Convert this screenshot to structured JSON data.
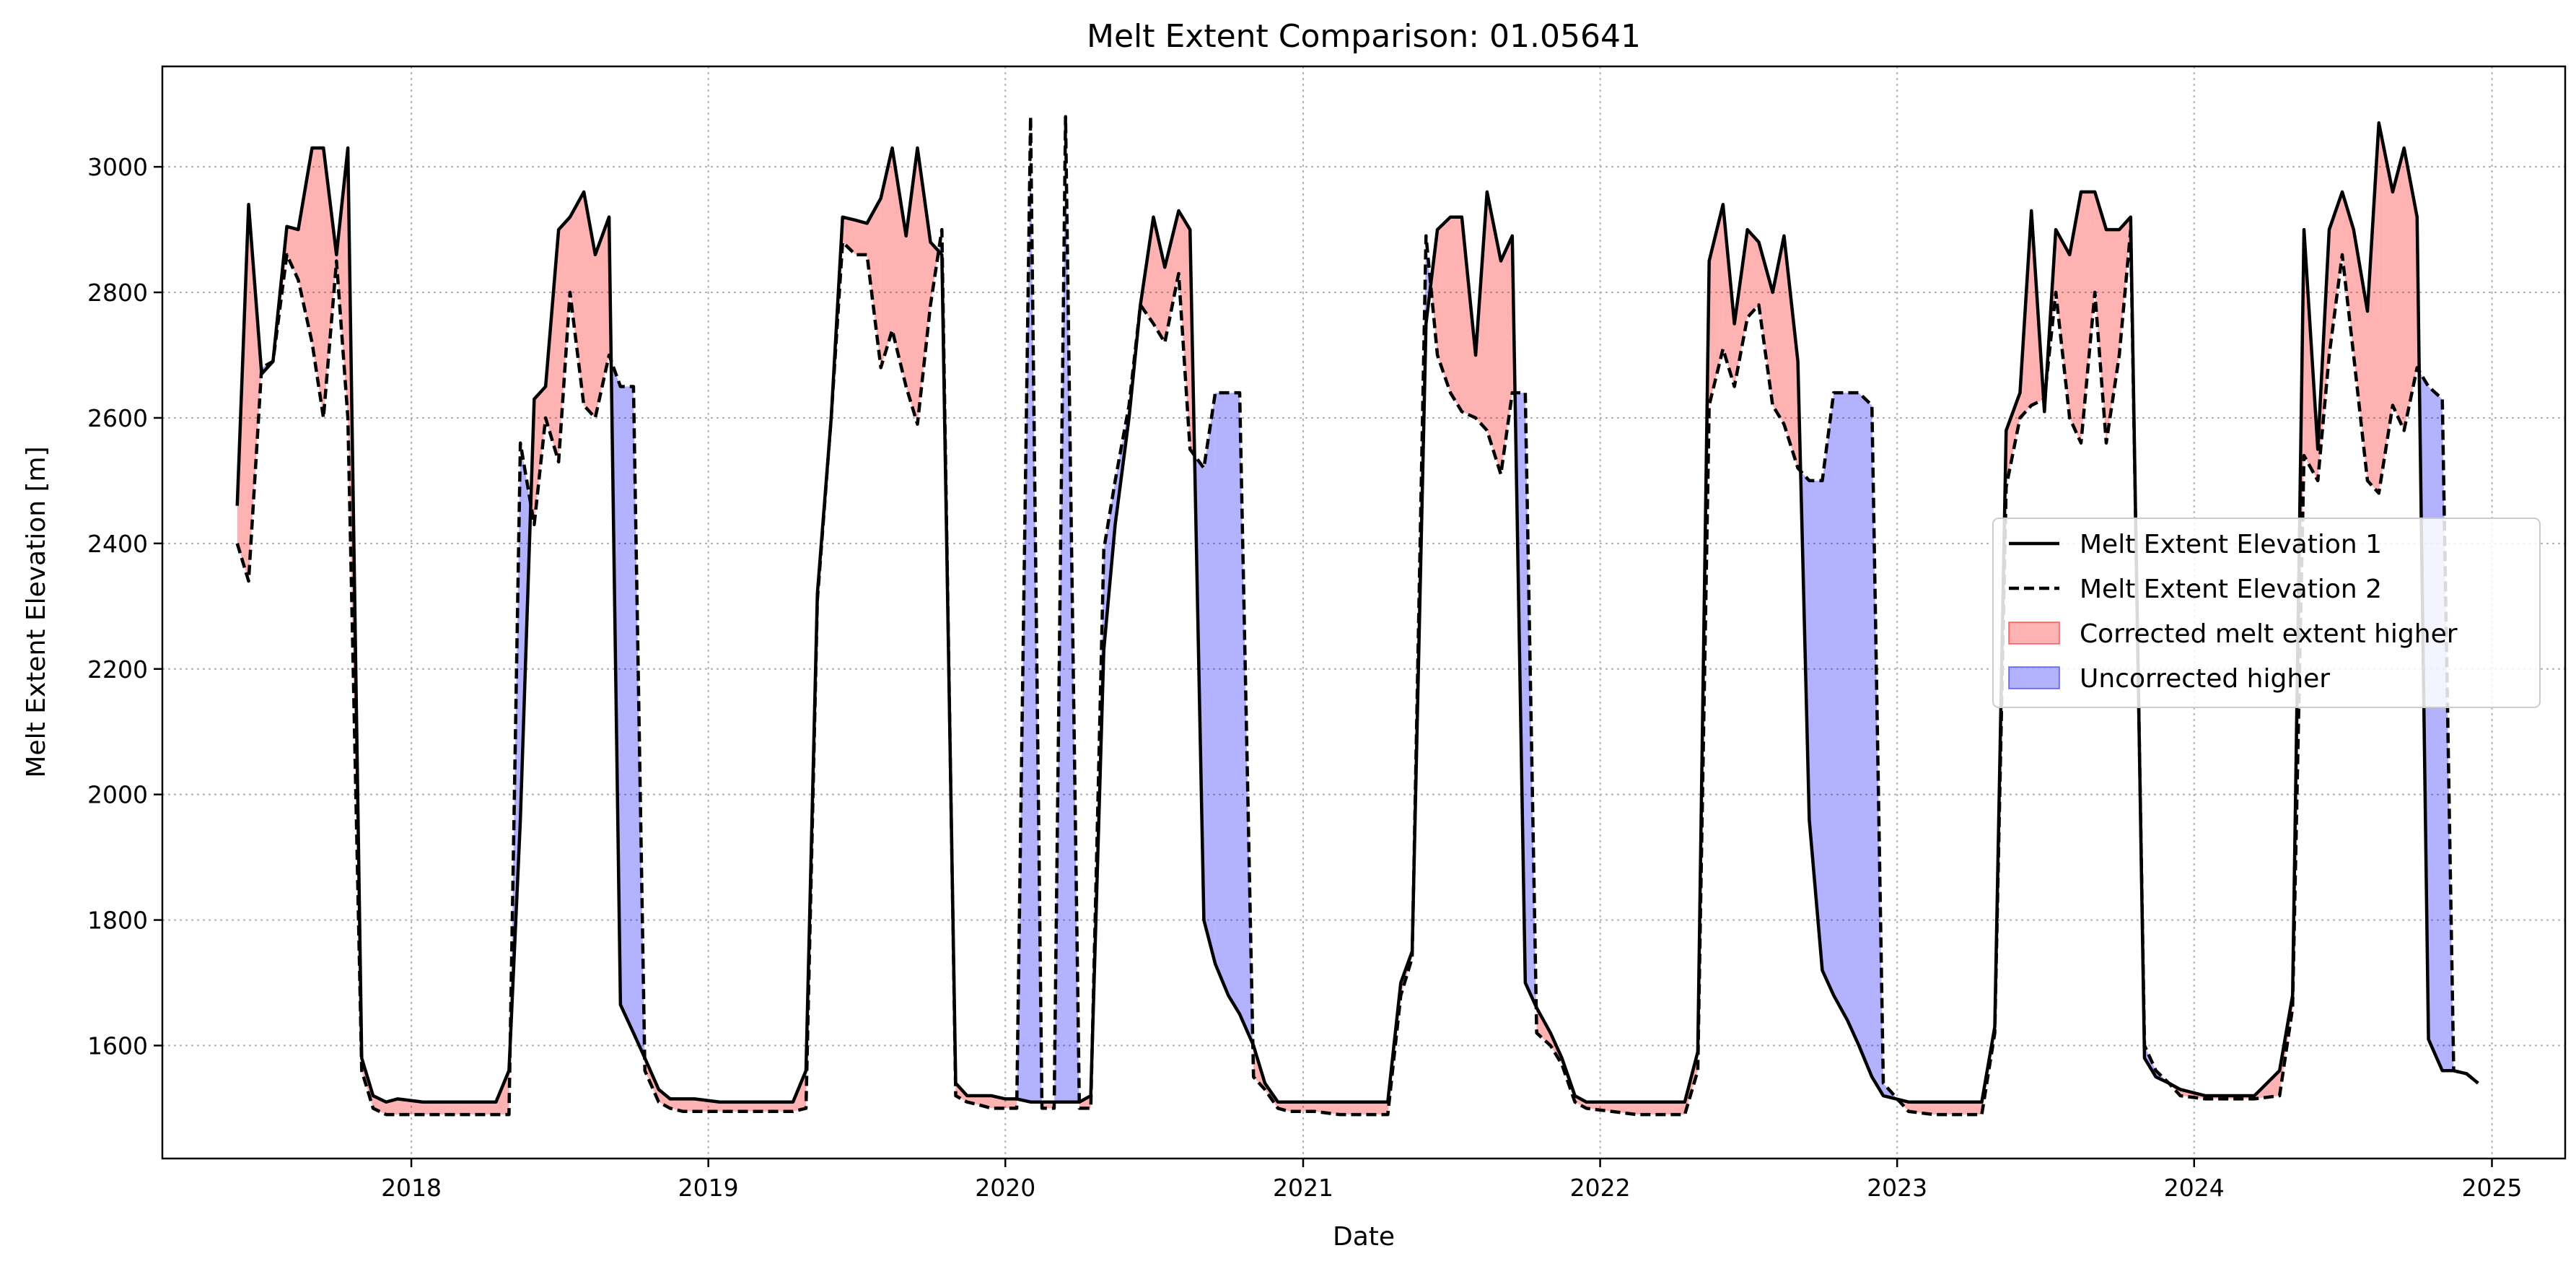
{
  "chart_data": {
    "type": "line",
    "title": "Melt Extent Comparison: 01.05641",
    "xlabel": "Date",
    "ylabel": "Melt Extent Elevation [m]",
    "xlim": [
      "2017-03-01",
      "2025-04-01"
    ],
    "ylim": [
      1420,
      3160
    ],
    "x_ticks": [
      "2018",
      "2019",
      "2020",
      "2021",
      "2022",
      "2023",
      "2024",
      "2025"
    ],
    "y_ticks": [
      1600,
      1800,
      2000,
      2200,
      2400,
      2600,
      2800,
      3000
    ],
    "grid": true,
    "legend_position": "center-right",
    "colors": {
      "line": "#000000",
      "higher_fill": "#ff0000",
      "lower_fill": "#0000ff",
      "fill_alpha": 0.3
    },
    "legend": [
      {
        "label": "Melt Extent Elevation 1",
        "kind": "solid"
      },
      {
        "label": "Melt Extent Elevation 2",
        "kind": "dashed"
      },
      {
        "label": "Corrected melt extent higher",
        "kind": "fill-red"
      },
      {
        "label": "Uncorrected higher",
        "kind": "fill-blue"
      }
    ],
    "dates": [
      "2017-06-01",
      "2017-06-15",
      "2017-07-01",
      "2017-07-15",
      "2017-08-01",
      "2017-08-15",
      "2017-09-01",
      "2017-09-15",
      "2017-10-01",
      "2017-10-15",
      "2017-11-01",
      "2017-11-15",
      "2017-12-01",
      "2017-12-15",
      "2018-01-15",
      "2018-02-15",
      "2018-03-15",
      "2018-04-15",
      "2018-05-01",
      "2018-05-15",
      "2018-06-01",
      "2018-06-15",
      "2018-07-01",
      "2018-07-15",
      "2018-08-01",
      "2018-08-15",
      "2018-09-01",
      "2018-09-15",
      "2018-10-01",
      "2018-10-15",
      "2018-11-01",
      "2018-11-15",
      "2018-12-01",
      "2018-12-15",
      "2019-01-15",
      "2019-02-15",
      "2019-03-15",
      "2019-04-15",
      "2019-05-01",
      "2019-05-15",
      "2019-06-01",
      "2019-06-15",
      "2019-07-01",
      "2019-07-15",
      "2019-08-01",
      "2019-08-15",
      "2019-09-01",
      "2019-09-15",
      "2019-10-01",
      "2019-10-15",
      "2019-11-01",
      "2019-11-15",
      "2019-12-01",
      "2019-12-15",
      "2020-01-01",
      "2020-01-15",
      "2020-02-01",
      "2020-02-15",
      "2020-03-01",
      "2020-03-15",
      "2020-04-01",
      "2020-04-15",
      "2020-05-01",
      "2020-05-15",
      "2020-06-01",
      "2020-06-15",
      "2020-07-01",
      "2020-07-15",
      "2020-08-01",
      "2020-08-15",
      "2020-09-01",
      "2020-09-15",
      "2020-10-01",
      "2020-10-15",
      "2020-11-01",
      "2020-11-15",
      "2020-12-01",
      "2020-12-15",
      "2021-01-15",
      "2021-02-15",
      "2021-03-15",
      "2021-04-15",
      "2021-05-01",
      "2021-05-15",
      "2021-06-01",
      "2021-06-15",
      "2021-07-01",
      "2021-07-15",
      "2021-08-01",
      "2021-08-15",
      "2021-09-01",
      "2021-09-15",
      "2021-10-01",
      "2021-10-15",
      "2021-11-01",
      "2021-11-15",
      "2021-12-01",
      "2021-12-15",
      "2022-01-15",
      "2022-02-15",
      "2022-03-15",
      "2022-04-15",
      "2022-05-01",
      "2022-05-15",
      "2022-06-01",
      "2022-06-15",
      "2022-07-01",
      "2022-07-15",
      "2022-08-01",
      "2022-08-15",
      "2022-09-01",
      "2022-09-15",
      "2022-10-01",
      "2022-10-15",
      "2022-11-01",
      "2022-11-15",
      "2022-12-01",
      "2022-12-15",
      "2023-01-15",
      "2023-02-15",
      "2023-03-15",
      "2023-04-15",
      "2023-05-01",
      "2023-05-15",
      "2023-06-01",
      "2023-06-15",
      "2023-07-01",
      "2023-07-15",
      "2023-08-01",
      "2023-08-15",
      "2023-09-01",
      "2023-09-15",
      "2023-10-01",
      "2023-10-15",
      "2023-11-01",
      "2023-11-15",
      "2023-12-01",
      "2023-12-15",
      "2024-01-15",
      "2024-02-15",
      "2024-03-15",
      "2024-04-15",
      "2024-05-01",
      "2024-05-15",
      "2024-06-01",
      "2024-06-15",
      "2024-07-01",
      "2024-07-15",
      "2024-08-01",
      "2024-08-15",
      "2024-09-01",
      "2024-09-15",
      "2024-10-01",
      "2024-10-15",
      "2024-11-01",
      "2024-11-15",
      "2024-12-01",
      "2024-12-15"
    ],
    "series": [
      {
        "name": "Melt Extent Elevation 1",
        "style": "solid",
        "values": [
          2460,
          2940,
          2670,
          2690,
          2905,
          2900,
          3030,
          3030,
          2860,
          3030,
          1580,
          1520,
          1510,
          1515,
          1510,
          1510,
          1510,
          1510,
          1560,
          1960,
          2630,
          2650,
          2900,
          2920,
          2960,
          2860,
          2920,
          1665,
          1620,
          1580,
          1530,
          1515,
          1515,
          1515,
          1510,
          1510,
          1510,
          1510,
          1560,
          2320,
          2600,
          2920,
          2915,
          2910,
          2950,
          3030,
          2890,
          3030,
          2880,
          2860,
          1540,
          1520,
          1520,
          1520,
          1515,
          1515,
          1510,
          1510,
          1510,
          1510,
          1510,
          1520,
          2230,
          2430,
          2600,
          2780,
          2920,
          2840,
          2930,
          2900,
          1800,
          1730,
          1680,
          1650,
          1600,
          1540,
          1510,
          1510,
          1510,
          1510,
          1510,
          1510,
          1700,
          1750,
          2750,
          2900,
          2920,
          2920,
          2700,
          2960,
          2850,
          2890,
          1700,
          1660,
          1620,
          1580,
          1520,
          1510,
          1510,
          1510,
          1510,
          1510,
          1590,
          2850,
          2940,
          2750,
          2900,
          2880,
          2800,
          2890,
          2690,
          1960,
          1720,
          1680,
          1640,
          1600,
          1550,
          1520,
          1510,
          1510,
          1510,
          1510,
          1630,
          2580,
          2640,
          2930,
          2610,
          2900,
          2860,
          2960,
          2960,
          2900,
          2900,
          2920,
          1580,
          1550,
          1540,
          1530,
          1520,
          1520,
          1520,
          1560,
          1680,
          2900,
          2550,
          2900,
          2960,
          2900,
          2770,
          3070,
          2960,
          3030,
          2920,
          1610,
          1560,
          1560,
          1555,
          1540
        ]
      },
      {
        "name": "Melt Extent Elevation 2",
        "style": "dashed",
        "values": [
          2400,
          2340,
          2680,
          2690,
          2860,
          2820,
          2720,
          2600,
          2850,
          2600,
          1560,
          1500,
          1490,
          1490,
          1490,
          1490,
          1490,
          1490,
          1490,
          2560,
          2430,
          2600,
          2530,
          2800,
          2620,
          2600,
          2700,
          2650,
          2650,
          1560,
          1510,
          1500,
          1495,
          1495,
          1495,
          1495,
          1495,
          1495,
          1500,
          2310,
          2600,
          2880,
          2860,
          2860,
          2680,
          2740,
          2650,
          2590,
          2780,
          2900,
          1520,
          1510,
          1505,
          1500,
          1500,
          1500,
          3080,
          1500,
          1500,
          3080,
          1500,
          1500,
          2390,
          2500,
          2620,
          2780,
          2750,
          2720,
          2830,
          2550,
          2520,
          2640,
          2640,
          2640,
          1550,
          1530,
          1500,
          1495,
          1495,
          1490,
          1490,
          1490,
          1680,
          1740,
          2890,
          2700,
          2640,
          2610,
          2600,
          2580,
          2510,
          2640,
          2640,
          1620,
          1600,
          1570,
          1510,
          1500,
          1495,
          1490,
          1490,
          1490,
          1560,
          2620,
          2710,
          2650,
          2760,
          2780,
          2620,
          2590,
          2520,
          2500,
          2500,
          2640,
          2640,
          2640,
          2620,
          1540,
          1495,
          1490,
          1490,
          1490,
          1620,
          2490,
          2600,
          2620,
          2630,
          2800,
          2600,
          2560,
          2800,
          2560,
          2700,
          2900,
          1600,
          1560,
          1540,
          1520,
          1515,
          1515,
          1515,
          1520,
          1660,
          2540,
          2500,
          2700,
          2860,
          2700,
          2500,
          2480,
          2620,
          2580,
          2680,
          2650,
          2630,
          1560,
          1555,
          1540
        ]
      }
    ]
  }
}
